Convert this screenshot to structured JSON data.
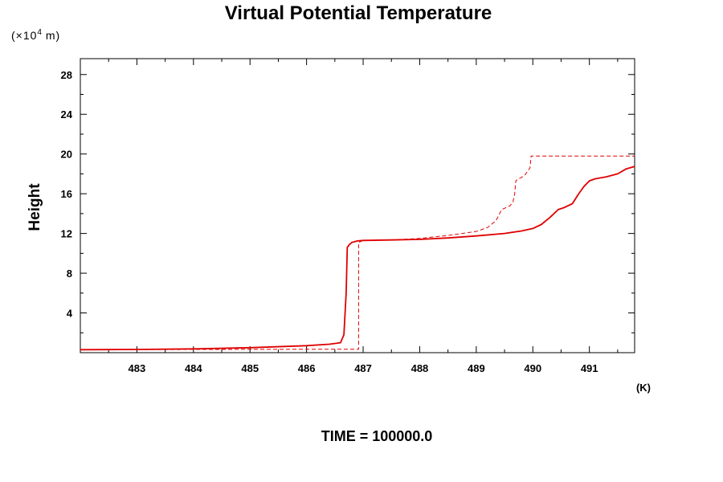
{
  "chart_data": {
    "type": "line",
    "title": "Virtual Potential Temperature",
    "y_units_prefix": "(×10",
    "y_units_exp": "4",
    "y_units_suffix": " m)",
    "ylabel": "Height",
    "x_units": "(K)",
    "footer": "TIME = 100000.0",
    "xlim": [
      482.0,
      491.8
    ],
    "ylim": [
      0.0,
      29.6
    ],
    "x_major_ticks": [
      483,
      484,
      485,
      486,
      487,
      488,
      489,
      490,
      491
    ],
    "y_major_ticks": [
      4,
      8,
      12,
      16,
      20,
      24,
      28
    ],
    "grid": false,
    "series": [
      {
        "style": "solid",
        "color": "#e00000",
        "x": [
          482.0,
          483.0,
          484.0,
          485.0,
          486.0,
          486.4,
          486.6,
          486.66,
          486.7,
          486.72,
          486.76,
          486.8,
          486.9,
          487.0,
          487.5,
          488.0,
          488.5,
          489.0,
          489.5,
          489.8,
          490.0,
          490.15,
          490.3,
          490.45,
          490.55,
          490.7,
          490.8,
          490.9,
          491.0,
          491.1,
          491.3,
          491.5,
          491.65,
          491.8
        ],
        "y": [
          0.3,
          0.32,
          0.38,
          0.5,
          0.7,
          0.85,
          1.0,
          1.8,
          6.0,
          10.6,
          10.9,
          11.1,
          11.25,
          11.3,
          11.35,
          11.4,
          11.55,
          11.75,
          12.0,
          12.25,
          12.5,
          12.9,
          13.6,
          14.4,
          14.6,
          15.0,
          15.9,
          16.7,
          17.3,
          17.5,
          17.7,
          18.0,
          18.5,
          18.75
        ]
      },
      {
        "style": "dashed",
        "color": "#e00000",
        "x": [
          482.0,
          486.5,
          486.92,
          486.92,
          487.0,
          487.5,
          488.0,
          488.5,
          489.0,
          489.2,
          489.35,
          489.45,
          489.6,
          489.65,
          489.68,
          489.7,
          489.75,
          489.85,
          489.95,
          489.97,
          490.2,
          491.0,
          491.8
        ],
        "y": [
          0.3,
          0.35,
          0.35,
          11.1,
          11.3,
          11.35,
          11.5,
          11.8,
          12.2,
          12.6,
          13.3,
          14.4,
          14.8,
          15.2,
          16.0,
          17.3,
          17.5,
          17.8,
          18.6,
          19.8,
          19.8,
          19.8,
          19.8
        ]
      }
    ]
  }
}
